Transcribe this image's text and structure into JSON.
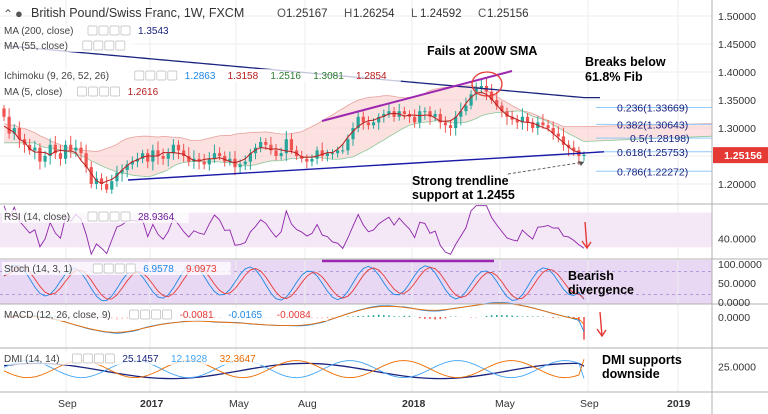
{
  "header": {
    "title": "British Pound/Swiss Franc, 1W, FXCM",
    "ohlc": [
      {
        "key": "O",
        "value": "1.25167"
      },
      {
        "key": "H",
        "value": "1.26254"
      },
      {
        "key": "L",
        "value": "1.24592"
      },
      {
        "key": "C",
        "value": "1.25156"
      }
    ]
  },
  "indicators_main": [
    {
      "label": "MA (200, close)",
      "values": [
        "1.3543"
      ],
      "colors": [
        "#1a237e"
      ]
    },
    {
      "label": "MA (55, close)",
      "values": [],
      "colors": []
    },
    {
      "label": "Ichimoku (9, 26, 52, 26)",
      "values": [
        "1.2863",
        "1.3158",
        "1.2516",
        "1.3081",
        "1.2854"
      ],
      "colors": [
        "#1e88e5",
        "#b71c1c",
        "#2e7d32",
        "#2e7d32",
        "#b71c1c"
      ]
    },
    {
      "label": "MA (5, close)",
      "values": [
        "1.2616"
      ],
      "colors": [
        "#b71c1c"
      ]
    }
  ],
  "annotations": {
    "fails": "Fails at 200W SMA",
    "breaks_line1": "Breaks below",
    "breaks_line2": "61.8% Fib",
    "support_line1": "Strong trendline",
    "support_line2": "support at 1.2455",
    "bearish_line1": "Bearish",
    "bearish_line2": "divergence",
    "dmi_line1": "DMI supports",
    "dmi_line2": "downside"
  },
  "fib_levels": [
    {
      "label": "0.236(1.33669)",
      "value": 1.33669
    },
    {
      "label": "0.382(1.30643)",
      "value": 1.30643
    },
    {
      "label": "0.5(1.28198)",
      "value": 1.28198
    },
    {
      "label": "0.618(1.25753)",
      "value": 1.25753
    },
    {
      "label": "0.786(1.22272)",
      "value": 1.22272
    }
  ],
  "price_tag": "1.25156",
  "rsi": {
    "label": "RSI (14, close)",
    "value": "28.9364"
  },
  "stoch": {
    "label": "Stoch (14, 3, 1)",
    "values": [
      "6.9578",
      "9.0973"
    ]
  },
  "macd": {
    "label": "MACD (12, 26, close, 9)",
    "values": [
      "-0.0081",
      "-0.0165",
      "-0.0084"
    ]
  },
  "dmi": {
    "label": "DMI (14, 14)",
    "values": [
      "25.1457",
      "12.1928",
      "32.3647"
    ]
  },
  "axis_ticks": {
    "price": [
      "1.50000",
      "1.45000",
      "1.40000",
      "1.35000",
      "1.30000",
      "1.25000",
      "1.20000"
    ],
    "rsi": [
      "40.0000"
    ],
    "stoch": [
      "100.0000",
      "50.0000",
      "0.0000"
    ],
    "macd": [
      "0.0000"
    ],
    "dmi": [
      "25.0000"
    ],
    "time": [
      "Sep",
      "2017",
      "May",
      "Aug",
      "2018",
      "May",
      "Sep",
      "2019"
    ]
  },
  "colors": {
    "candle_up": "#26a69a",
    "candle_down": "#ef5350",
    "ma200": "#1a237e",
    "ma5": "#b71c1c",
    "trend": "#1a1aa8",
    "annotation_purple": "#9c27b0",
    "arrow_red": "#e53935",
    "price_tag_bg": "#e53935"
  },
  "chart_data": {
    "type": "candlestick",
    "title": "British Pound/Swiss Franc, 1W, FXCM",
    "x_start": "2016-07",
    "x_end": "2019-01",
    "ylim": [
      1.16,
      1.52
    ],
    "yticks": [
      1.2,
      1.25,
      1.3,
      1.35,
      1.4,
      1.45,
      1.5
    ],
    "closes": [
      1.32,
      1.29,
      1.3,
      1.28,
      1.27,
      1.26,
      1.265,
      1.24,
      1.25,
      1.27,
      1.255,
      1.245,
      1.27,
      1.26,
      1.265,
      1.255,
      1.23,
      1.2,
      1.21,
      1.2,
      1.19,
      1.205,
      1.22,
      1.225,
      1.235,
      1.24,
      1.245,
      1.255,
      1.24,
      1.26,
      1.25,
      1.245,
      1.255,
      1.27,
      1.26,
      1.25,
      1.24,
      1.245,
      1.24,
      1.235,
      1.245,
      1.255,
      1.25,
      1.24,
      1.245,
      1.23,
      1.235,
      1.24,
      1.255,
      1.265,
      1.275,
      1.27,
      1.26,
      1.25,
      1.255,
      1.28,
      1.26,
      1.25,
      1.245,
      1.24,
      1.245,
      1.26,
      1.25,
      1.255,
      1.255,
      1.26,
      1.26,
      1.28,
      1.3,
      1.32,
      1.31,
      1.305,
      1.31,
      1.32,
      1.325,
      1.33,
      1.32,
      1.33,
      1.325,
      1.32,
      1.31,
      1.33,
      1.33,
      1.32,
      1.325,
      1.31,
      1.305,
      1.3,
      1.32,
      1.33,
      1.34,
      1.36,
      1.37,
      1.375,
      1.365,
      1.35,
      1.34,
      1.33,
      1.32,
      1.315,
      1.31,
      1.32,
      1.31,
      1.3,
      1.31,
      1.305,
      1.3,
      1.29,
      1.285,
      1.27,
      1.265,
      1.26,
      1.25,
      1.252
    ],
    "ichimoku_cloud": {
      "span_a_end": 1.3081,
      "span_b_end": 1.2854
    },
    "ma200_end": 1.3543,
    "ma5_end": 1.2616,
    "support_trendline": 1.2455,
    "fib_retracement": [
      1.33669,
      1.30643,
      1.28198,
      1.25753,
      1.22272
    ],
    "last_close": 1.25156,
    "rsi_last": 28.9364,
    "stoch_last": [
      6.9578,
      9.0973
    ],
    "macd_last": [
      -0.0081,
      -0.0165,
      -0.0084
    ],
    "dmi_last": [
      25.1457,
      12.1928,
      32.3647
    ]
  }
}
